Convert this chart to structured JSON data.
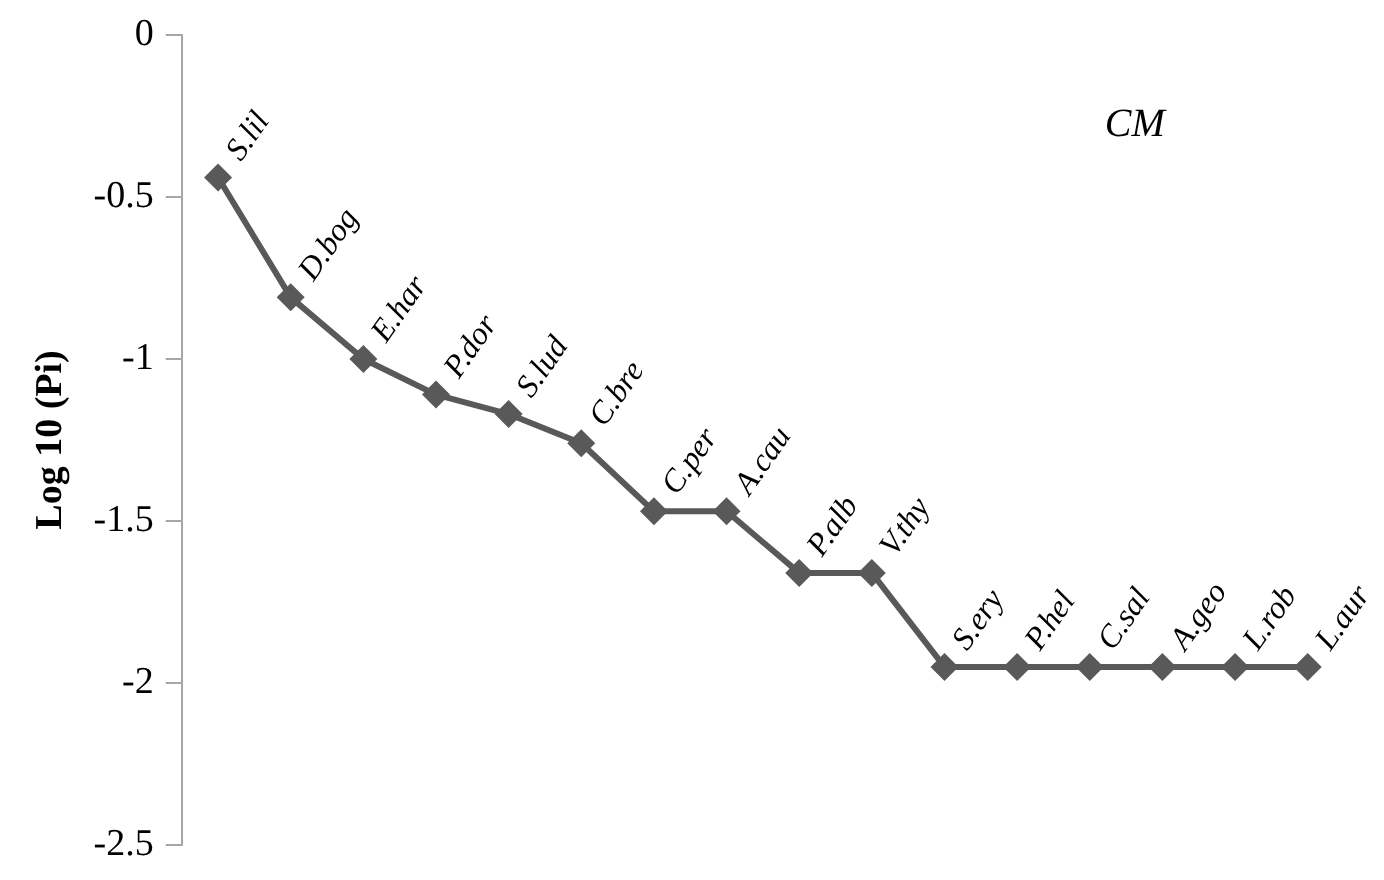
{
  "chart_data": {
    "type": "line",
    "ylabel": "Log 10 (Pi)",
    "annotations": [
      "CM"
    ],
    "categories": [
      null,
      null,
      null,
      null,
      null,
      null,
      null,
      null,
      null,
      null,
      null,
      null,
      null,
      null,
      null,
      null
    ],
    "series": [
      {
        "color": "#595959",
        "marker": "diamond",
        "line_style": "solid",
        "values": [
          -0.44,
          -0.81,
          -1.0,
          -1.11,
          -1.17,
          -1.26,
          -1.47,
          -1.47,
          -1.66,
          -1.66,
          -1.95,
          -1.95,
          -1.95,
          -1.95,
          -1.95,
          -1.95
        ],
        "value_labels": [
          "S.lil",
          "D.bog",
          "E.har",
          "P.dor",
          "S.lud",
          "C.bre",
          "C.per",
          "A.cau",
          "P.alb",
          "V.thy",
          "S.ery",
          "P.hel",
          "C.sal",
          "A.geo",
          "L.rob",
          "L.aur"
        ]
      }
    ],
    "ylim": [
      -2.5,
      0
    ],
    "yticks": [
      0,
      -0.5,
      -1,
      -1.5,
      -2,
      -2.5
    ],
    "grid": false,
    "legend": false,
    "tick_labels": "y"
  }
}
